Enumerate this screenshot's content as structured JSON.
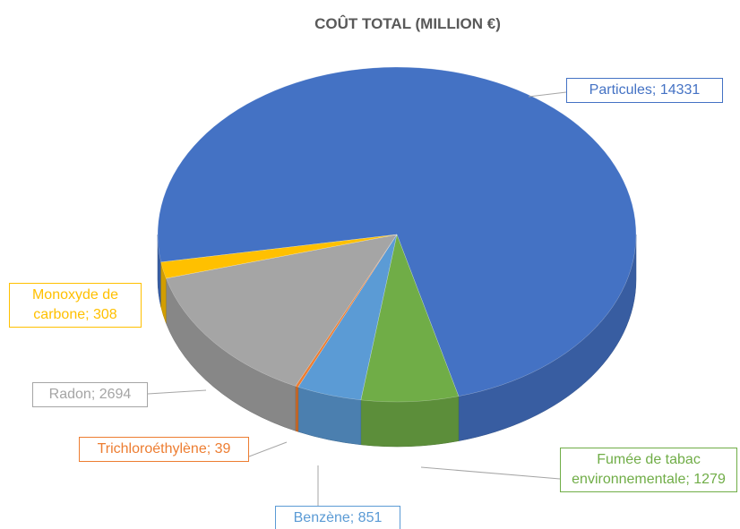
{
  "chart_data": {
    "type": "pie",
    "title": "COÛT TOTAL (MILLION €)",
    "categories": [
      "Particules",
      "Fumée de tabac environnementale",
      "Benzène",
      "Trichloroéthylène",
      "Radon",
      "Monoxyde de carbone"
    ],
    "values": [
      14331,
      1279,
      851,
      39,
      2694,
      308
    ],
    "value_labels": [
      "Particules; 14331",
      "Fumée de tabac environnementale; 1279",
      "Benzène; 851",
      "Trichloroéthylène; 39",
      "Radon; 2694",
      "Monoxyde de carbone; 308"
    ],
    "colors": [
      "#4472c4",
      "#70ad47",
      "#5b9bd5",
      "#ed7d31",
      "#a5a5a5",
      "#ffc000"
    ]
  }
}
